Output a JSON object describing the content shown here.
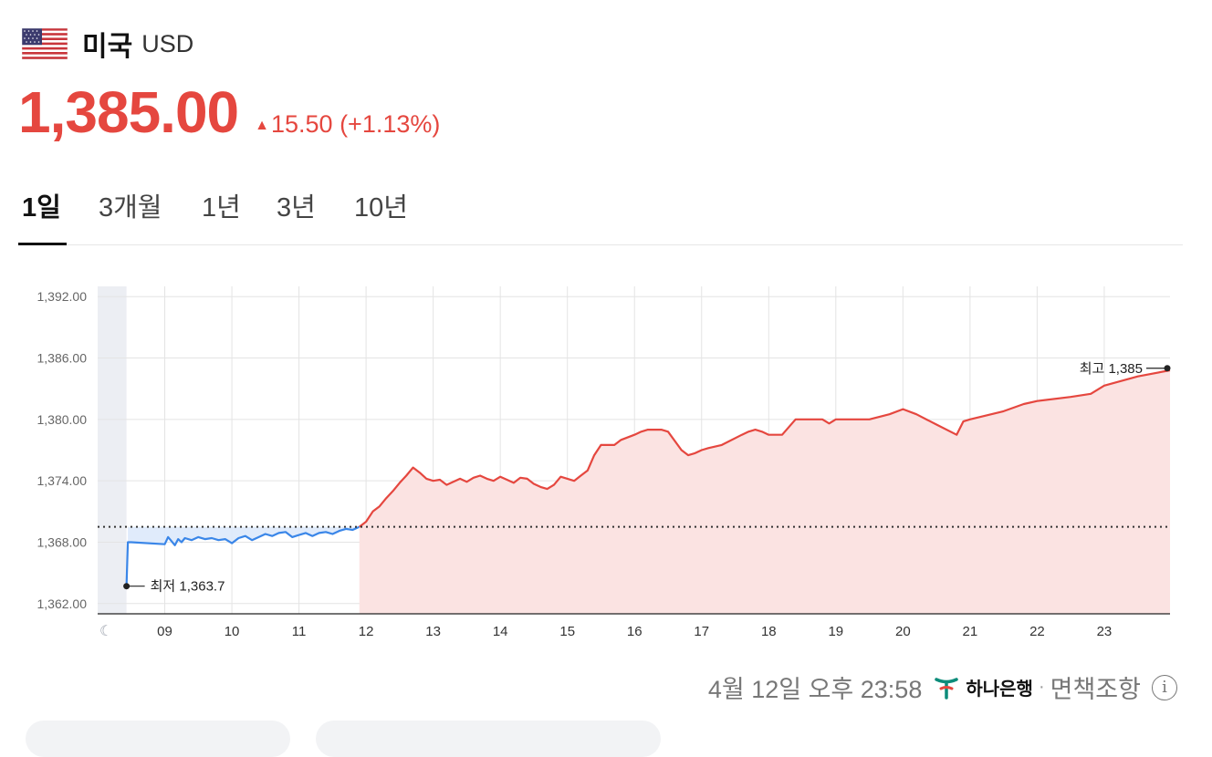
{
  "header": {
    "country": "미국",
    "currency": "USD"
  },
  "price": {
    "value": "1,385.00",
    "change": "15.50",
    "change_pct": "(+1.13%)",
    "direction": "up"
  },
  "tabs": [
    {
      "label": "1일",
      "active": true
    },
    {
      "label": "3개월",
      "active": false
    },
    {
      "label": "1년",
      "active": false
    },
    {
      "label": "3년",
      "active": false
    },
    {
      "label": "10년",
      "active": false
    }
  ],
  "footer": {
    "timestamp": "4월 12일 오후 23:58",
    "bank": "하나은행",
    "separator": "·",
    "disclaimer": "면책조항"
  },
  "colors": {
    "up": "#e5473f",
    "before": "#3a86e8",
    "fill_up": "#fbe3e2",
    "fill_before": "#dde9fb"
  },
  "chart_data": {
    "type": "line",
    "ylim": [
      1361,
      1393
    ],
    "yticks": [
      1362,
      1368,
      1374,
      1380,
      1386,
      1392
    ],
    "ytick_labels": [
      "1,362.00",
      "1,368.00",
      "1,374.00",
      "1,380.00",
      "1,386.00",
      "1,392.00"
    ],
    "xlim": [
      8.0,
      23.98
    ],
    "xticks": [
      9,
      10,
      11,
      12,
      13,
      14,
      15,
      16,
      17,
      18,
      19,
      20,
      21,
      22,
      23
    ],
    "xtick_labels": [
      "09",
      "10",
      "11",
      "12",
      "13",
      "14",
      "15",
      "16",
      "17",
      "18",
      "19",
      "20",
      "21",
      "22",
      "23"
    ],
    "baseline": 1369.5,
    "night_range": [
      8.0,
      8.43
    ],
    "night_icon": "moon-icon",
    "low": {
      "label": "최저 1,363.7",
      "x": 8.43,
      "y": 1363.7
    },
    "high": {
      "label": "최고 1,385",
      "x": 23.98,
      "y": 1385
    },
    "series": [
      {
        "segment": "before_baseline",
        "x": [
          8.43,
          8.45,
          8.5,
          9.0,
          9.05,
          9.1,
          9.15,
          9.2,
          9.25,
          9.3,
          9.4,
          9.5,
          9.6,
          9.7,
          9.8,
          9.9,
          10.0,
          10.1,
          10.2,
          10.3,
          10.4,
          10.5,
          10.6,
          10.7,
          10.8,
          10.9,
          11.0,
          11.1,
          11.2,
          11.3,
          11.4,
          11.5,
          11.6,
          11.7,
          11.8,
          11.9
        ],
        "y": [
          1363.7,
          1368.0,
          1368.0,
          1367.8,
          1368.5,
          1368.1,
          1367.7,
          1368.3,
          1368.0,
          1368.4,
          1368.2,
          1368.5,
          1368.3,
          1368.4,
          1368.2,
          1368.3,
          1367.9,
          1368.4,
          1368.6,
          1368.2,
          1368.5,
          1368.8,
          1368.6,
          1368.9,
          1369.0,
          1368.5,
          1368.7,
          1368.9,
          1368.6,
          1368.9,
          1369.0,
          1368.8,
          1369.1,
          1369.3,
          1369.2,
          1369.5
        ]
      },
      {
        "segment": "after_baseline",
        "x": [
          11.9,
          12.0,
          12.1,
          12.2,
          12.3,
          12.4,
          12.5,
          12.6,
          12.7,
          12.8,
          12.9,
          13.0,
          13.1,
          13.2,
          13.3,
          13.4,
          13.5,
          13.6,
          13.7,
          13.8,
          13.9,
          14.0,
          14.1,
          14.2,
          14.3,
          14.4,
          14.5,
          14.6,
          14.7,
          14.8,
          14.9,
          15.0,
          15.1,
          15.2,
          15.3,
          15.4,
          15.5,
          15.6,
          15.7,
          15.8,
          16.0,
          16.1,
          16.2,
          16.3,
          16.4,
          16.5,
          16.7,
          16.8,
          16.9,
          17.0,
          17.1,
          17.3,
          17.6,
          17.7,
          17.8,
          17.9,
          18.0,
          18.2,
          18.4,
          18.5,
          18.6,
          18.8,
          18.9,
          19.0,
          19.2,
          19.5,
          19.8,
          20.0,
          20.2,
          20.5,
          20.8,
          20.9,
          21.0,
          21.5,
          21.8,
          22.0,
          22.5,
          22.8,
          23.0,
          23.5,
          23.98
        ],
        "y": [
          1369.5,
          1370.0,
          1371.0,
          1371.5,
          1372.3,
          1373.0,
          1373.8,
          1374.5,
          1375.3,
          1374.8,
          1374.2,
          1374.0,
          1374.1,
          1373.6,
          1373.9,
          1374.2,
          1373.9,
          1374.3,
          1374.5,
          1374.2,
          1374.0,
          1374.4,
          1374.1,
          1373.8,
          1374.3,
          1374.2,
          1373.7,
          1373.4,
          1373.2,
          1373.6,
          1374.4,
          1374.2,
          1374.0,
          1374.5,
          1375.0,
          1376.5,
          1377.5,
          1377.5,
          1377.5,
          1378.0,
          1378.5,
          1378.8,
          1379.0,
          1379.0,
          1379.0,
          1378.8,
          1377.0,
          1376.5,
          1376.7,
          1377.0,
          1377.2,
          1377.5,
          1378.5,
          1378.8,
          1379.0,
          1378.8,
          1378.5,
          1378.5,
          1380.0,
          1380.0,
          1380.0,
          1380.0,
          1379.6,
          1380.0,
          1380.0,
          1380.0,
          1380.5,
          1381.0,
          1380.5,
          1379.5,
          1378.5,
          1379.8,
          1380.0,
          1380.8,
          1381.5,
          1381.8,
          1382.2,
          1382.5,
          1383.3,
          1384.2,
          1384.8
        ]
      }
    ]
  }
}
